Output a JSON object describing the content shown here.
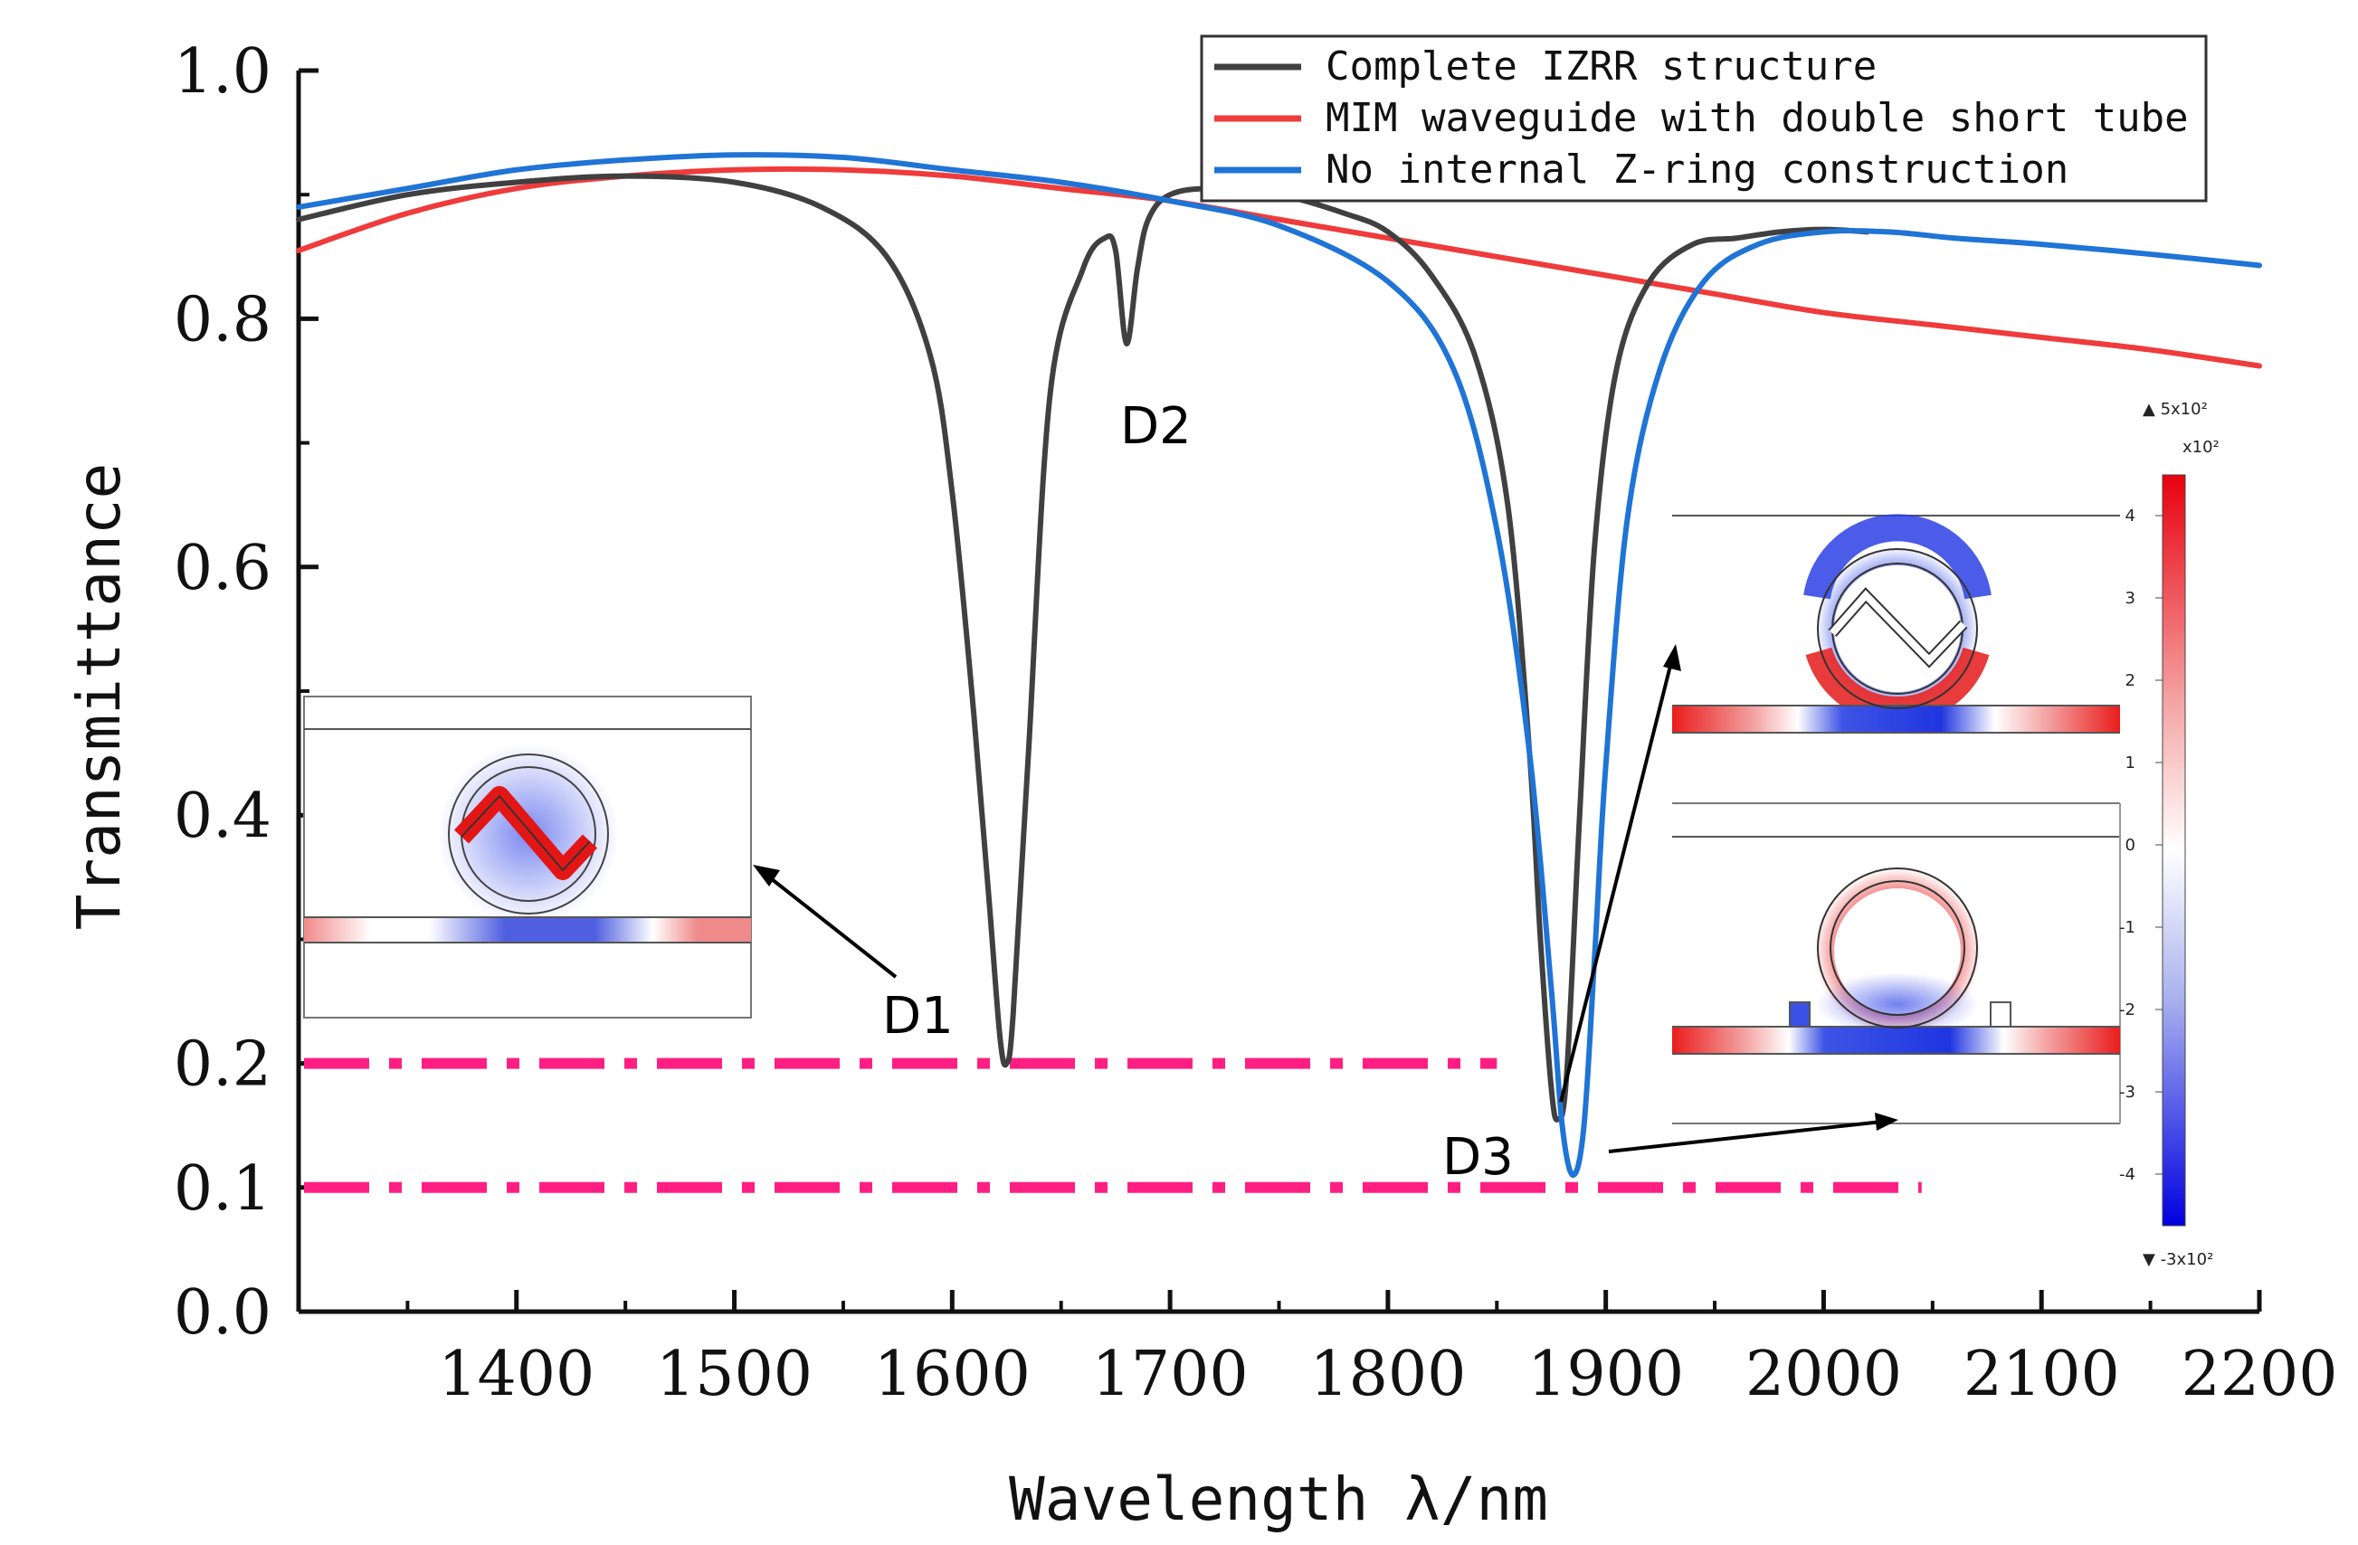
{
  "chart_data": {
    "type": "line",
    "xlabel": "Wavelength λ/nm",
    "ylabel": "Transmittance",
    "xlim": [
      1300,
      2200
    ],
    "ylim": [
      0,
      1.0
    ],
    "xticks": [
      "1400",
      "1500",
      "1600",
      "1700",
      "1800",
      "1900",
      "2000",
      "2100",
      "2200"
    ],
    "yticks": [
      "0.0",
      "0.1",
      "0.2",
      "0.4",
      "0.6",
      "0.8",
      "1.0"
    ],
    "series": [
      {
        "name": "Complete IZRR structure",
        "color": "#404040",
        "x": [
          1300,
          1350,
          1400,
          1450,
          1500,
          1540,
          1570,
          1590,
          1600,
          1610,
          1617,
          1622,
          1625,
          1628,
          1635,
          1645,
          1660,
          1670,
          1675,
          1680,
          1685,
          1690,
          1700,
          1720,
          1750,
          1780,
          1800,
          1820,
          1840,
          1855,
          1865,
          1870,
          1875,
          1878,
          1882,
          1888,
          1895,
          1905,
          1920,
          1940,
          1960,
          1980,
          2000,
          2020
        ],
        "y": [
          0.88,
          0.9,
          0.91,
          0.915,
          0.91,
          0.89,
          0.85,
          0.77,
          0.66,
          0.48,
          0.33,
          0.22,
          0.2,
          0.24,
          0.45,
          0.74,
          0.84,
          0.865,
          0.855,
          0.78,
          0.84,
          0.88,
          0.9,
          0.905,
          0.9,
          0.885,
          0.87,
          0.835,
          0.77,
          0.65,
          0.45,
          0.3,
          0.18,
          0.155,
          0.19,
          0.4,
          0.62,
          0.76,
          0.83,
          0.86,
          0.865,
          0.87,
          0.872,
          0.87
        ]
      },
      {
        "name": "MIM waveguide with double short tube",
        "color": "#ef3b3b",
        "x": [
          1300,
          1350,
          1400,
          1450,
          1500,
          1550,
          1600,
          1650,
          1700,
          1750,
          1800,
          1850,
          1900,
          1950,
          2000,
          2050,
          2100,
          2150,
          2200
        ],
        "y": [
          0.855,
          0.885,
          0.905,
          0.915,
          0.92,
          0.92,
          0.915,
          0.905,
          0.895,
          0.88,
          0.865,
          0.85,
          0.835,
          0.82,
          0.805,
          0.795,
          0.785,
          0.775,
          0.762
        ]
      },
      {
        "name": "No internal Z-ring construction",
        "color": "#1f74d6",
        "x": [
          1300,
          1350,
          1400,
          1450,
          1500,
          1550,
          1600,
          1650,
          1700,
          1750,
          1800,
          1830,
          1850,
          1865,
          1875,
          1880,
          1885,
          1890,
          1895,
          1900,
          1910,
          1925,
          1945,
          1970,
          2000,
          2030,
          2060,
          2100,
          2150,
          2200
        ],
        "y": [
          0.89,
          0.905,
          0.92,
          0.928,
          0.932,
          0.93,
          0.92,
          0.91,
          0.895,
          0.875,
          0.83,
          0.76,
          0.63,
          0.45,
          0.26,
          0.15,
          0.11,
          0.15,
          0.29,
          0.44,
          0.64,
          0.76,
          0.83,
          0.86,
          0.87,
          0.87,
          0.865,
          0.86,
          0.852,
          0.843
        ]
      }
    ],
    "reference_lines": [
      {
        "y": 0.2,
        "color": "#ff1f82"
      },
      {
        "y": 0.1,
        "color": "#ff1f82"
      }
    ],
    "annotations": [
      "D1",
      "D2",
      "D3"
    ],
    "legend_position": "top-right",
    "colorbar": {
      "max_label": "▲ 5x10²",
      "scale_label": "x10²",
      "min_label": "▼ -3x10²",
      "ticks": [
        "4",
        "3",
        "2",
        "1",
        "0",
        "-1",
        "-2",
        "-3",
        "-4"
      ]
    }
  }
}
